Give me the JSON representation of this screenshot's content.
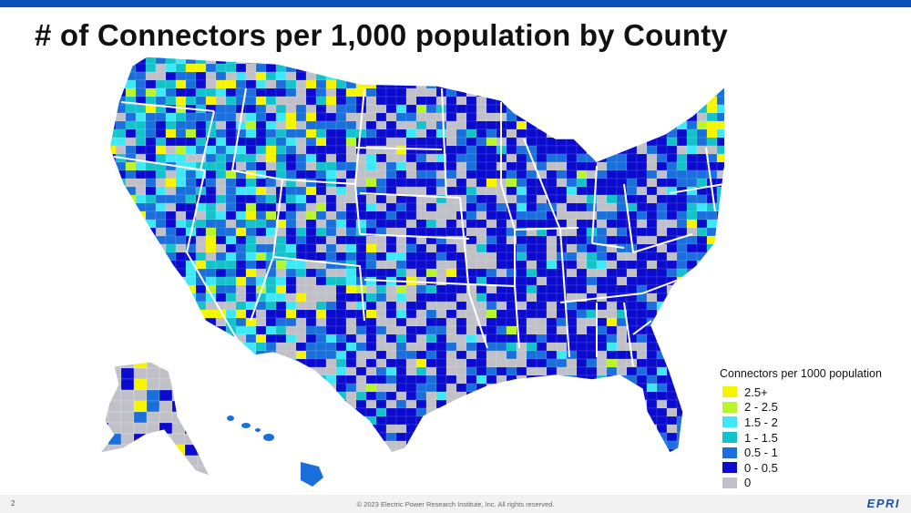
{
  "slide": {
    "title": "# of Connectors per 1,000 population by County",
    "page_number": "2",
    "copyright": "© 2023 Electric Power Research Institute, Inc. All rights reserved.",
    "logo_text": "EPRI"
  },
  "map": {
    "subject": "US counties choropleth",
    "legend": {
      "title": "Connectors per 1000 population",
      "items": [
        {
          "label": "2.5+",
          "color": "#f5f500"
        },
        {
          "label": "2 - 2.5",
          "color": "#b8f52a"
        },
        {
          "label": "1.5 - 2",
          "color": "#3fe8f8"
        },
        {
          "label": "1 - 1.5",
          "color": "#14c2cc"
        },
        {
          "label": "0.5 - 1",
          "color": "#1a6fdc"
        },
        {
          "label": "0 - 0.5",
          "color": "#0b0bcf"
        },
        {
          "label": "0",
          "color": "#c0c0c8"
        }
      ]
    },
    "colors": {
      "yellow": "#f5f500",
      "lime": "#b8f52a",
      "cyan": "#3fe8f8",
      "teal": "#14c2cc",
      "blue": "#1a6fdc",
      "darkblue": "#0b0bcf",
      "gray": "#c0c0c8",
      "state_border": "#ffffff",
      "accent_bar": "#0b4fb8"
    }
  }
}
